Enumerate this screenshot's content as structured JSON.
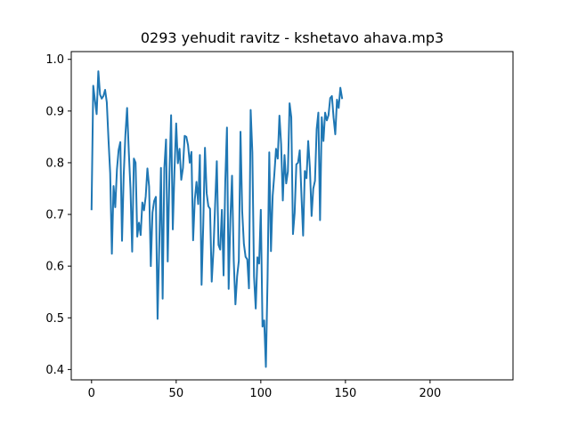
{
  "chart_data": {
    "type": "line",
    "title": "0293 yehudit ravitz - kshetavo ahava.mp3",
    "xlabel": "",
    "ylabel": "",
    "xlim": [
      -12,
      249
    ],
    "ylim": [
      0.38,
      1.015
    ],
    "grid": false,
    "legend": "none",
    "x_ticks": [
      0,
      50,
      100,
      150,
      200
    ],
    "x_tick_labels": [
      "0",
      "50",
      "100",
      "150",
      "200"
    ],
    "y_ticks": [
      0.4,
      0.5,
      0.6,
      0.7,
      0.8,
      0.9,
      1.0
    ],
    "y_tick_labels": [
      "0.4",
      "0.5",
      "0.6",
      "0.7",
      "0.8",
      "0.9",
      "1.0"
    ],
    "series": [
      {
        "color": "#1f77b4",
        "values": [
          0.71,
          0.949,
          0.921,
          0.894,
          0.977,
          0.932,
          0.924,
          0.929,
          0.941,
          0.917,
          0.845,
          0.78,
          0.624,
          0.755,
          0.714,
          0.787,
          0.825,
          0.84,
          0.649,
          0.776,
          0.854,
          0.906,
          0.822,
          0.749,
          0.628,
          0.808,
          0.8,
          0.657,
          0.684,
          0.66,
          0.723,
          0.708,
          0.735,
          0.789,
          0.754,
          0.6,
          0.704,
          0.726,
          0.734,
          0.498,
          0.64,
          0.79,
          0.537,
          0.79,
          0.845,
          0.609,
          0.777,
          0.892,
          0.671,
          0.786,
          0.876,
          0.799,
          0.827,
          0.767,
          0.79,
          0.852,
          0.85,
          0.834,
          0.8,
          0.821,
          0.65,
          0.729,
          0.763,
          0.72,
          0.815,
          0.564,
          0.68,
          0.829,
          0.741,
          0.716,
          0.711,
          0.57,
          0.629,
          0.718,
          0.803,
          0.641,
          0.632,
          0.709,
          0.582,
          0.764,
          0.868,
          0.556,
          0.69,
          0.775,
          0.611,
          0.526,
          0.58,
          0.61,
          0.86,
          0.706,
          0.643,
          0.618,
          0.613,
          0.557,
          0.902,
          0.82,
          0.58,
          0.518,
          0.617,
          0.605,
          0.709,
          0.483,
          0.495,
          0.405,
          0.578,
          0.82,
          0.629,
          0.736,
          0.778,
          0.827,
          0.808,
          0.891,
          0.836,
          0.727,
          0.815,
          0.76,
          0.783,
          0.915,
          0.888,
          0.662,
          0.703,
          0.797,
          0.8,
          0.824,
          0.738,
          0.659,
          0.784,
          0.77,
          0.842,
          0.79,
          0.697,
          0.75,
          0.765,
          0.865,
          0.897,
          0.689,
          0.888,
          0.842,
          0.897,
          0.882,
          0.892,
          0.925,
          0.929,
          0.887,
          0.855,
          0.922,
          0.906,
          0.945,
          0.925
        ]
      }
    ]
  }
}
